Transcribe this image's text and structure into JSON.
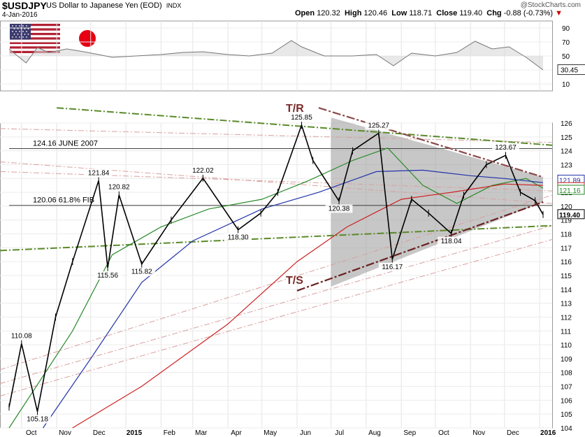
{
  "header": {
    "symbol": "$USDJPY",
    "name": "US Dollar to Japanese Yen (EOD)",
    "exchange": "INDX",
    "date": "4-Jan-2016",
    "brand": "@StockCharts.com",
    "open_label": "Open",
    "open": "120.32",
    "high_label": "High",
    "high": "120.46",
    "low_label": "Low",
    "low": "118.71",
    "close_label": "Close",
    "close": "119.40",
    "chg_label": "Chg",
    "chg": "-0.88 (-0.73%)",
    "chg_arrow": "▼"
  },
  "chart_data": [
    {
      "type": "line",
      "panel": "rsi",
      "yaxis_ticks": [
        10,
        30,
        50,
        70,
        90
      ],
      "ylim": [
        0,
        100
      ],
      "current_value": "30.45",
      "series": [
        {
          "x": [
            "2014-09-20",
            "2014-10-05",
            "2014-10-15",
            "2014-10-25",
            "2014-11-10",
            "2014-11-25",
            "2014-12-08",
            "2014-12-20",
            "2015-01-10",
            "2015-02-01",
            "2015-02-20",
            "2015-03-10",
            "2015-04-01",
            "2015-04-20",
            "2015-05-10",
            "2015-05-27",
            "2015-06-05",
            "2015-06-25",
            "2015-07-20",
            "2015-08-10",
            "2015-08-25",
            "2015-09-10",
            "2015-10-01",
            "2015-10-20",
            "2015-11-05",
            "2015-11-20",
            "2015-12-05",
            "2015-12-20",
            "2016-01-04"
          ],
          "values": [
            60,
            40,
            62,
            55,
            60,
            56,
            52,
            48,
            50,
            52,
            55,
            56,
            52,
            50,
            54,
            72,
            63,
            50,
            50,
            52,
            36,
            54,
            50,
            55,
            71,
            60,
            63,
            48,
            30
          ]
        }
      ]
    },
    {
      "type": "line",
      "panel": "price",
      "ylim": [
        104,
        126
      ],
      "yaxis_ticks": [
        104,
        105,
        106,
        107,
        108,
        109,
        110,
        111,
        112,
        113,
        114,
        115,
        116,
        117,
        118,
        119,
        120,
        121,
        122,
        123,
        124,
        125,
        126
      ],
      "x_tick_labels": [
        "Oct",
        "Nov",
        "Dec",
        "2015",
        "Feb",
        "Mar",
        "Apr",
        "May",
        "Jun",
        "Jul",
        "Aug",
        "Sep",
        "Oct",
        "Nov",
        "Dec",
        "2016"
      ],
      "series": [
        {
          "name": "price",
          "x": [
            "2014-09-20",
            "2014-10-01",
            "2014-10-15",
            "2014-10-31",
            "2014-11-15",
            "2014-12-08",
            "2014-12-16",
            "2014-12-26",
            "2015-01-15",
            "2015-02-10",
            "2015-03-10",
            "2015-04-10",
            "2015-04-30",
            "2015-05-15",
            "2015-06-05",
            "2015-06-15",
            "2015-07-08",
            "2015-07-20",
            "2015-08-12",
            "2015-08-24",
            "2015-09-10",
            "2015-09-25",
            "2015-10-15",
            "2015-10-26",
            "2015-11-15",
            "2015-12-02",
            "2015-12-15",
            "2015-12-28",
            "2016-01-04"
          ],
          "values": [
            105.5,
            110.08,
            105.18,
            112.0,
            116.0,
            121.84,
            115.56,
            120.82,
            115.82,
            119.0,
            122.02,
            118.3,
            119.5,
            121.0,
            125.85,
            123.3,
            120.38,
            124.0,
            125.27,
            116.17,
            120.5,
            119.5,
            118.04,
            120.8,
            123.0,
            123.67,
            121.0,
            120.4,
            119.4
          ]
        },
        {
          "name": "50-day MA",
          "x": [
            "2014-09-20",
            "2014-11-15",
            "2014-12-20",
            "2015-02-01",
            "2015-03-15",
            "2015-05-01",
            "2015-06-10",
            "2015-07-20",
            "2015-08-20",
            "2015-09-20",
            "2015-10-20",
            "2015-11-20",
            "2015-12-20",
            "2016-01-04"
          ],
          "values": [
            104.0,
            111.0,
            116.5,
            118.5,
            119.8,
            120.5,
            121.8,
            123.3,
            124.2,
            121.5,
            120.2,
            121.5,
            122.0,
            121.3
          ]
        },
        {
          "name": "100-day MA",
          "x": [
            "2014-10-20",
            "2014-12-01",
            "2015-01-15",
            "2015-03-01",
            "2015-05-01",
            "2015-06-20",
            "2015-08-10",
            "2015-09-20",
            "2015-11-01",
            "2015-12-01",
            "2016-01-04"
          ],
          "values": [
            104.0,
            109.0,
            114.5,
            117.5,
            119.8,
            121.0,
            122.5,
            122.6,
            122.2,
            122.0,
            121.7
          ]
        },
        {
          "name": "200-day MA",
          "x": [
            "2014-11-15",
            "2015-01-15",
            "2015-04-01",
            "2015-06-01",
            "2015-07-15",
            "2015-09-01",
            "2015-10-15",
            "2015-12-01",
            "2016-01-04"
          ],
          "values": [
            104.0,
            107.0,
            111.5,
            116.0,
            118.5,
            120.5,
            121.0,
            121.6,
            121.5
          ]
        }
      ],
      "price_labels": [
        {
          "text": "110.08",
          "x": "2014-10-01",
          "y": 110.08,
          "pos": "above"
        },
        {
          "text": "105.18",
          "x": "2014-10-15",
          "y": 105.18,
          "pos": "below"
        },
        {
          "text": "121.84",
          "x": "2014-12-08",
          "y": 121.84,
          "pos": "above"
        },
        {
          "text": "120.82",
          "x": "2014-12-26",
          "y": 120.82,
          "pos": "above"
        },
        {
          "text": "115.56",
          "x": "2014-12-16",
          "y": 115.56,
          "pos": "below"
        },
        {
          "text": "115.82",
          "x": "2015-01-15",
          "y": 115.82,
          "pos": "below"
        },
        {
          "text": "122.02",
          "x": "2015-03-10",
          "y": 122.02,
          "pos": "above"
        },
        {
          "text": "118.30",
          "x": "2015-04-10",
          "y": 118.3,
          "pos": "below"
        },
        {
          "text": "125.85",
          "x": "2015-06-05",
          "y": 125.85,
          "pos": "above"
        },
        {
          "text": "120.38",
          "x": "2015-07-08",
          "y": 120.38,
          "pos": "below"
        },
        {
          "text": "125.27",
          "x": "2015-08-12",
          "y": 125.27,
          "pos": "above"
        },
        {
          "text": "116.17",
          "x": "2015-08-24",
          "y": 116.17,
          "pos": "below"
        },
        {
          "text": "118.04",
          "x": "2015-10-15",
          "y": 118.04,
          "pos": "below"
        },
        {
          "text": "123.67",
          "x": "2015-12-02",
          "y": 123.67,
          "pos": "above"
        }
      ],
      "horizontal_lines": [
        {
          "label": "124.16  JUNE 2007",
          "y": 124.16,
          "from": "2014-09-20"
        },
        {
          "label": "120.06  61.8% FIB",
          "y": 120.06,
          "from": "2014-09-20"
        }
      ],
      "axis_value_boxes": [
        {
          "text": "121.89",
          "y": 121.89,
          "color": "#2233aa"
        },
        {
          "text": "121.35",
          "y": 121.35,
          "color": "#cc2222"
        },
        {
          "text": "121.16",
          "y": 121.16,
          "color": "#228822"
        },
        {
          "text": "119.40",
          "y": 119.4,
          "color": "#000000"
        }
      ],
      "annotations": [
        {
          "text": "T/R",
          "x": "2015-06-01",
          "y": 126.8
        },
        {
          "text": "T/S",
          "x": "2015-06-01",
          "y": 114.4
        }
      ],
      "triangle": {
        "x_start": "2015-07-01",
        "x_end": "2016-01-04",
        "upper_start": 126.4,
        "upper_end": 122.1,
        "lower_start": 114.2,
        "lower_end": 120.3
      },
      "colors": {
        "upper_tl": "#8a4a4a",
        "lower_tl": "#6a2020",
        "green": "#5a8a2a",
        "ma50": "#2a8a2a",
        "ma100": "#2233aa",
        "ma200": "#cc2222"
      }
    }
  ]
}
